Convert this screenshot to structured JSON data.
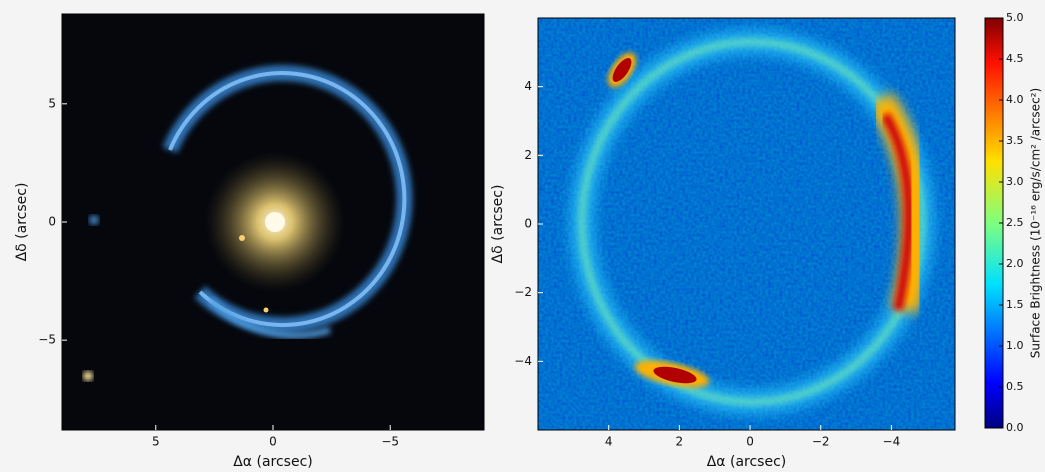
{
  "chart_data": [
    {
      "type": "image",
      "xlabel": "Δα (arcsec)",
      "ylabel": "Δδ (arcsec)",
      "xlim": [
        9,
        -9
      ],
      "ylim": [
        -8.8,
        8.8
      ],
      "xticks": [
        5,
        0,
        {
          "value": -5,
          "label": "−5"
        }
      ],
      "yticks": [
        5,
        0,
        {
          "value": -5,
          "label": "−5"
        }
      ]
    },
    {
      "type": "image",
      "xlabel": "Δα (arcsec)",
      "ylabel": "Δδ (arcsec)",
      "xlim": [
        6,
        -5.8
      ],
      "ylim": [
        -6,
        6
      ],
      "xticks": [
        4,
        2,
        0,
        {
          "value": -2,
          "label": "−2"
        },
        {
          "value": -4,
          "label": "−4"
        }
      ],
      "yticks": [
        4,
        2,
        0,
        {
          "value": -2,
          "label": "−2"
        },
        {
          "value": -4,
          "label": "−4"
        }
      ]
    },
    {
      "type": "colorbar",
      "label": "Surface Brightness (10⁻¹⁶ erg/s/cm² /arcsec²)",
      "colormap": "jet",
      "ylim": [
        0,
        5
      ],
      "yticks": [
        {
          "value": 0,
          "label": "0.0"
        },
        0.5,
        {
          "value": 1,
          "label": "1.0"
        },
        1.5,
        {
          "value": 2,
          "label": "2.0"
        },
        2.5,
        {
          "value": 3,
          "label": "3.0"
        },
        3.5,
        {
          "value": 4,
          "label": "4.0"
        },
        4.5,
        {
          "value": 5,
          "label": "5.0"
        }
      ]
    }
  ]
}
